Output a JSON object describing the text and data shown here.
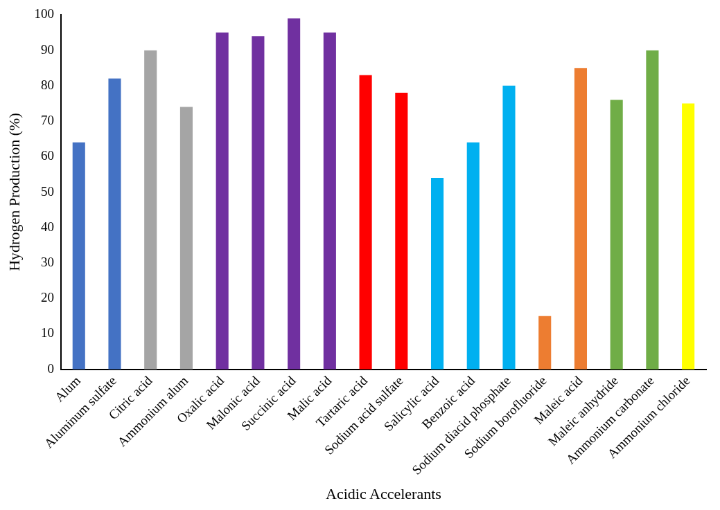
{
  "chart_data": {
    "type": "bar",
    "xlabel": "Acidic Accelerants",
    "ylabel": "Hydrogen Production (%)",
    "categories": [
      "Alum",
      "Aluminum sulfate",
      "Citric acid",
      "Ammonium alum",
      "Oxalic acid",
      "Malonic acid",
      "Succinic acid",
      "Malic acid",
      "Tartaric acid",
      "Sodium acid sulfate",
      "Salicylic acid",
      "Benzoic acid",
      "Sodium diacid phosphate",
      "Sodium borofluoride",
      "Maleic acid",
      "Maleic anhydride",
      "Ammonium carbonate",
      "Ammonium chloride"
    ],
    "values": [
      64,
      82,
      90,
      74,
      95,
      94,
      99,
      95,
      83,
      78,
      54,
      64,
      80,
      15,
      85,
      76,
      90,
      75
    ],
    "colors": [
      "#4472c4",
      "#4472c4",
      "#a5a5a5",
      "#a5a5a5",
      "#7030a0",
      "#7030a0",
      "#7030a0",
      "#7030a0",
      "#ff0000",
      "#ff0000",
      "#00b0f0",
      "#00b0f0",
      "#00b0f0",
      "#ed7d31",
      "#ed7d31",
      "#70ad47",
      "#70ad47",
      "#ffff00"
    ],
    "ylim": [
      0,
      100
    ],
    "yticks": [
      0,
      10,
      20,
      30,
      40,
      50,
      60,
      70,
      80,
      90,
      100
    ],
    "grid": false,
    "legend": false
  }
}
